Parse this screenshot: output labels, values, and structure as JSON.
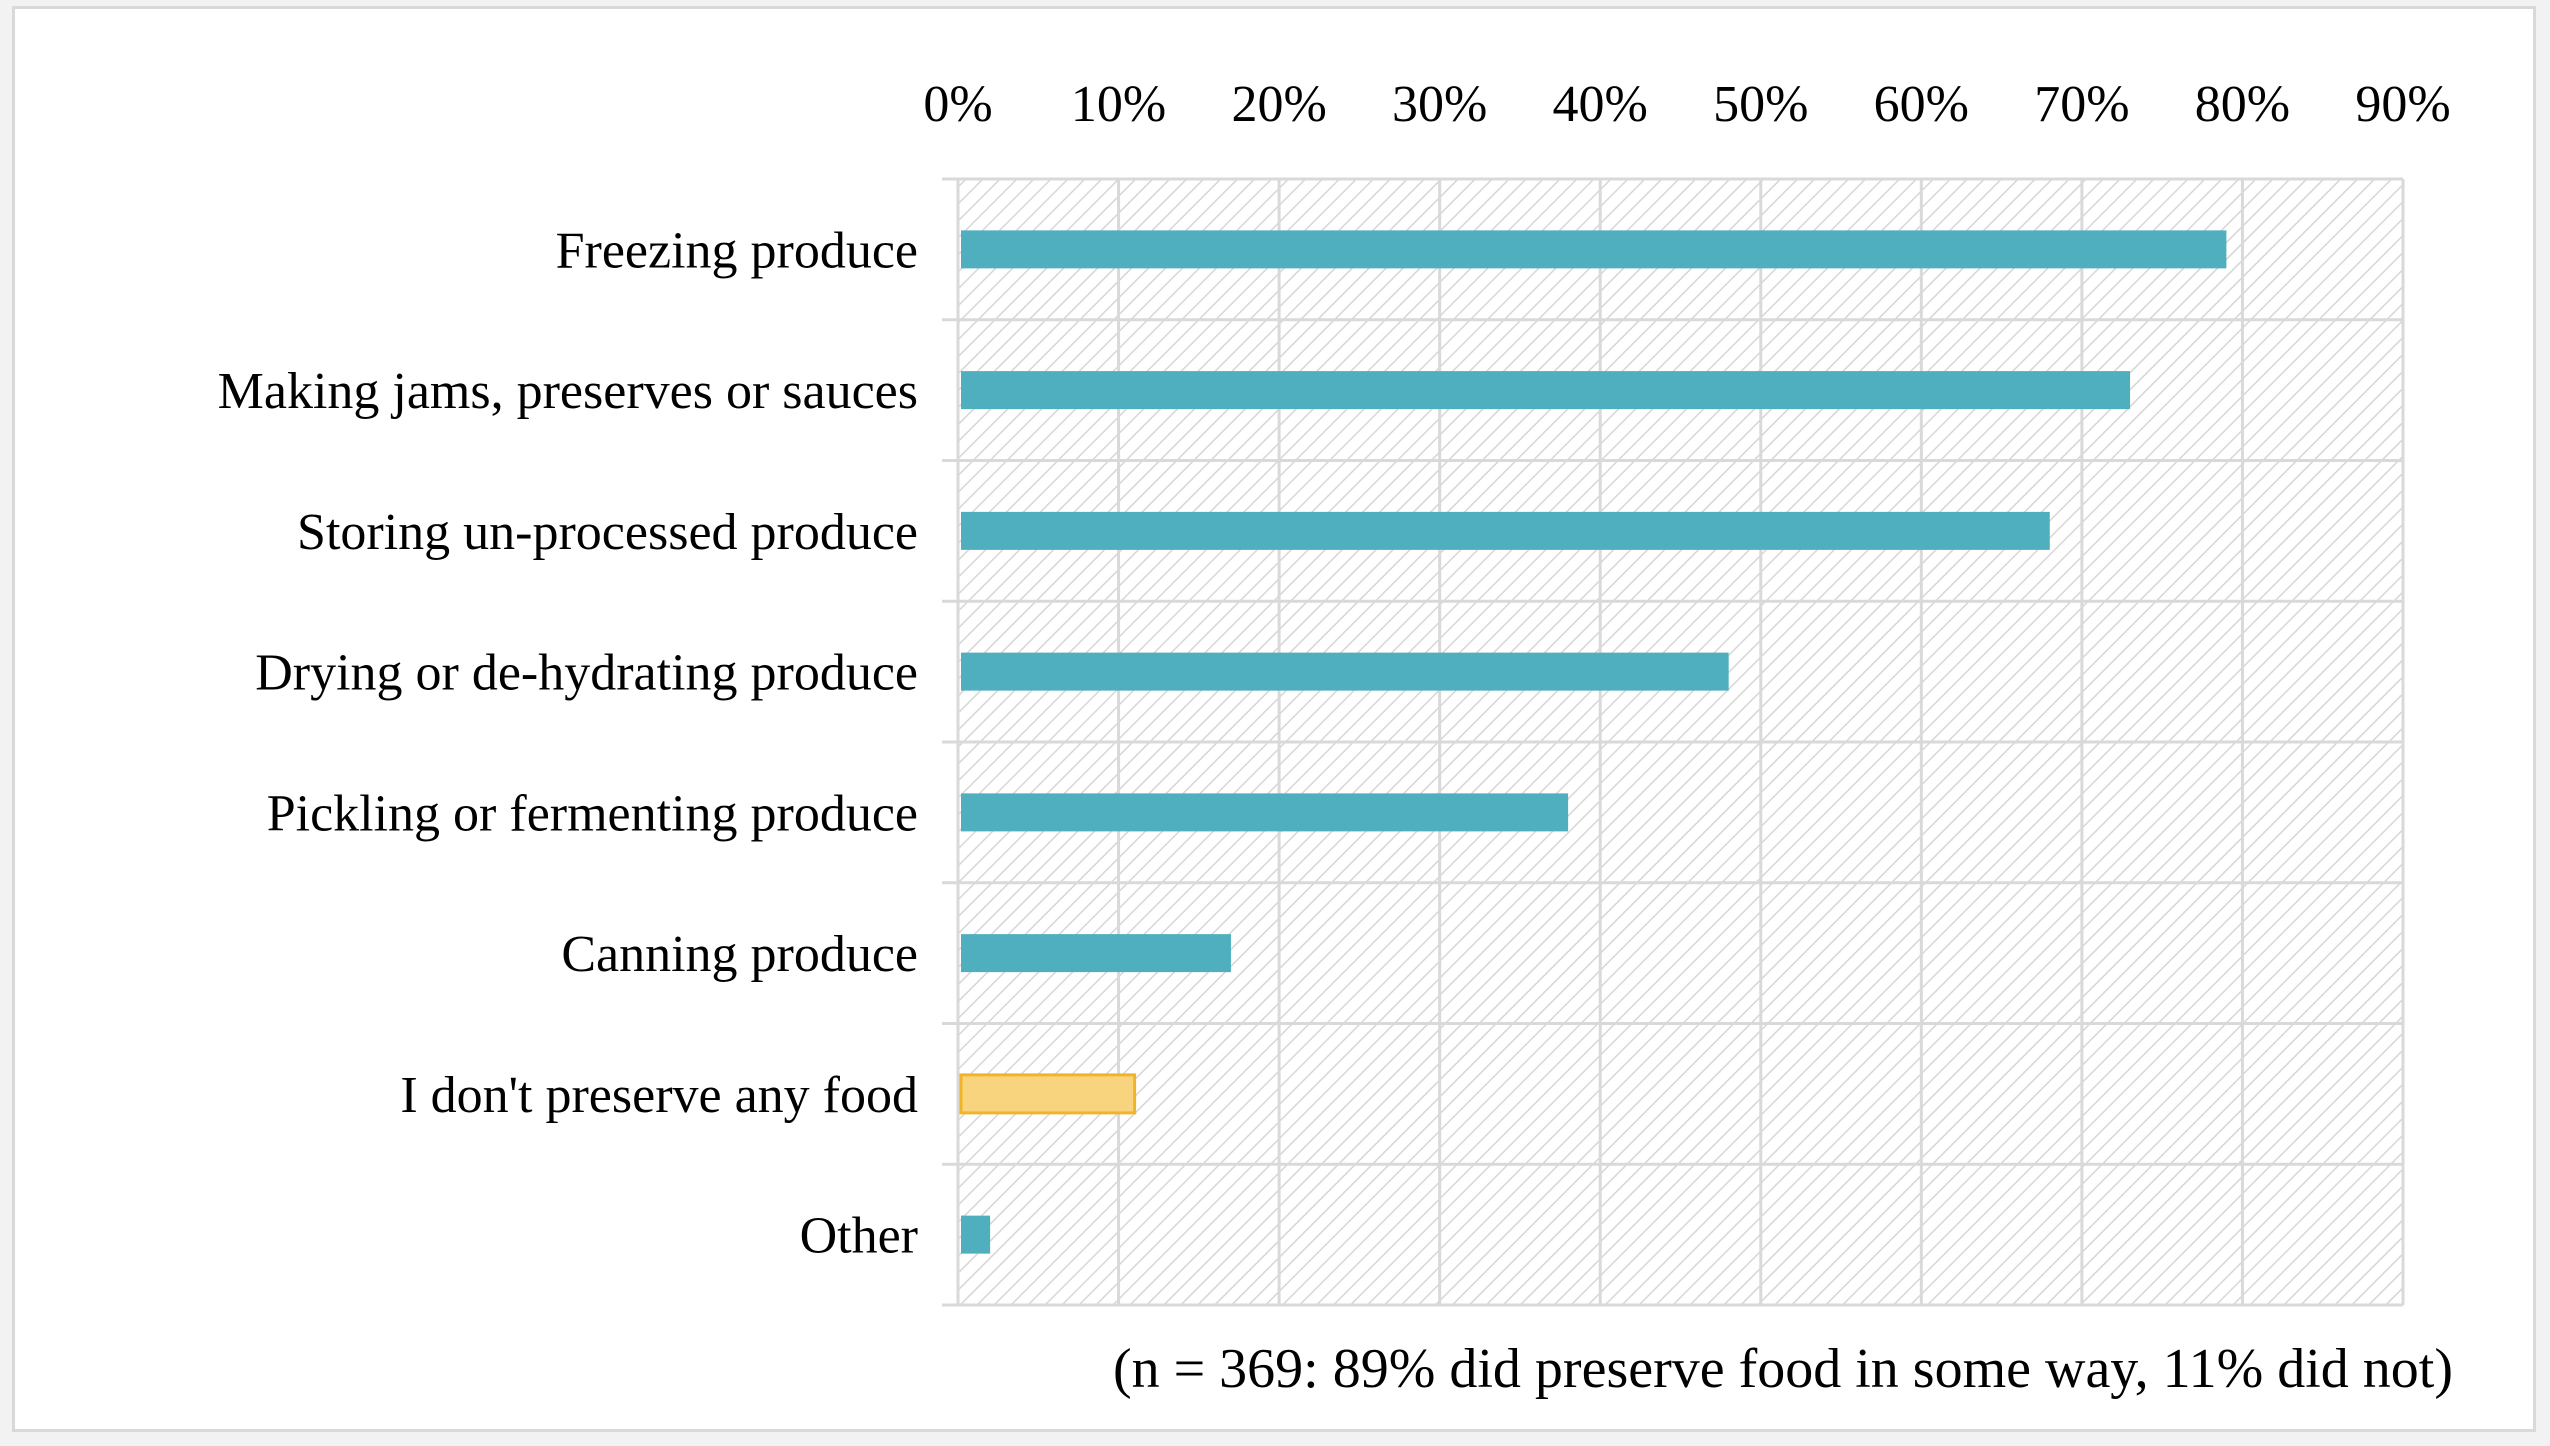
{
  "chart_data": {
    "type": "bar",
    "orientation": "horizontal",
    "title": "",
    "xlabel": "",
    "ylabel": "",
    "categories": [
      "Freezing produce",
      "Making jams, preserves or sauces",
      "Storing un-processed produce",
      "Drying or de-hydrating produce",
      "Pickling or fermenting produce",
      "Canning produce",
      "I don't preserve any food",
      "Other"
    ],
    "values": [
      79,
      73,
      68,
      48,
      38,
      17,
      11,
      2
    ],
    "bar_colors": [
      "#4fafbe",
      "#4fafbe",
      "#4fafbe",
      "#4fafbe",
      "#4fafbe",
      "#4fafbe",
      "#f9d47e",
      "#4fafbe"
    ],
    "xlim": [
      0,
      90
    ],
    "x_ticks": [
      "0%",
      "10%",
      "20%",
      "30%",
      "40%",
      "50%",
      "60%",
      "70%",
      "80%",
      "90%"
    ],
    "x_axis_position": "top",
    "grid": true,
    "plot_background": "hatched",
    "legend": "none",
    "annotation": "(n = 369: 89% did preserve food in some way, 11% did not)"
  }
}
